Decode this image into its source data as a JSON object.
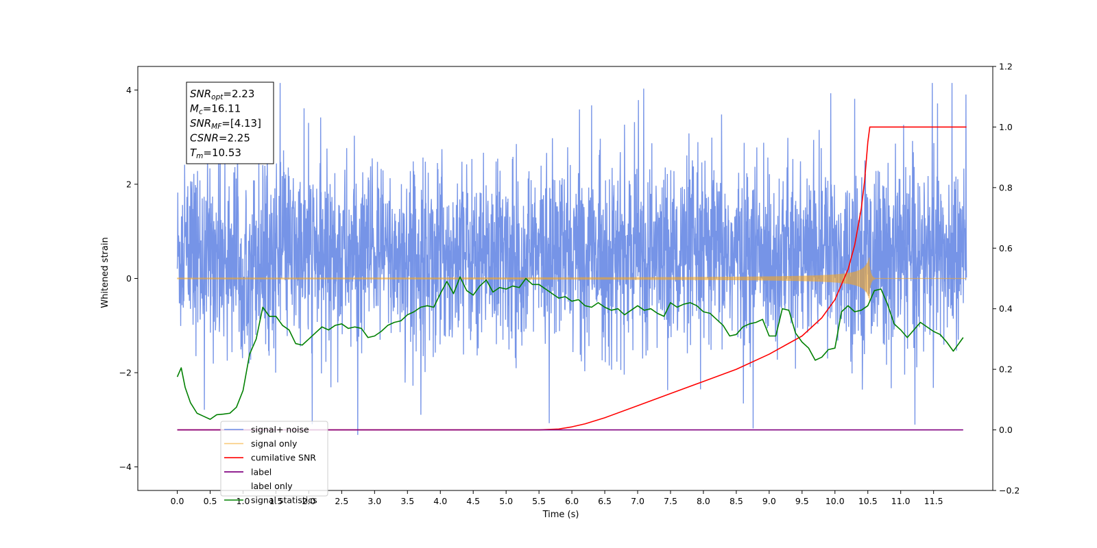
{
  "chart_data": {
    "type": "line",
    "title": "",
    "xlabel": "Time (s)",
    "ylabel": "Whitened strain",
    "ylabel_right": "",
    "xlim": [
      -0.6,
      12.4
    ],
    "ylim": [
      -4.5,
      4.5
    ],
    "ylim_right": [
      -0.2,
      1.2
    ],
    "x_ticks": [
      "0.0",
      "0.5",
      "1.0",
      "1.5",
      "2.0",
      "2.5",
      "3.0",
      "3.5",
      "4.0",
      "4.5",
      "5.0",
      "5.5",
      "6.0",
      "6.5",
      "7.0",
      "7.5",
      "8.0",
      "8.5",
      "9.0",
      "9.5",
      "10.0",
      "10.5",
      "11.0",
      "11.5"
    ],
    "y_ticks_left": [
      "−4",
      "−2",
      "0",
      "2",
      "4"
    ],
    "y_ticks_right": [
      "−0.2",
      "0.0",
      "0.2",
      "0.4",
      "0.6",
      "0.8",
      "1.0",
      "1.2"
    ],
    "grid": false,
    "legend_position": "lower-left",
    "annotation": {
      "lines": [
        {
          "sym": "SNR",
          "sub": "opt",
          "value": "=2.23"
        },
        {
          "sym": "M",
          "sub": "c",
          "value": "=16.11"
        },
        {
          "sym": "SNR",
          "sub": "MF",
          "value": "=[4.13]"
        },
        {
          "sym": "CSNR",
          "sub": "",
          "value": "=2.25"
        },
        {
          "sym": "T",
          "sub": "m",
          "value": "=10.53"
        }
      ]
    },
    "series": [
      {
        "name": "signal+ noise",
        "axis": "left",
        "color": "#6f8ee6",
        "kind": "noise",
        "x_range": [
          0.0,
          12.0
        ],
        "mean": 0.5,
        "std": 0.95
      },
      {
        "name": "signal only",
        "axis": "left",
        "color": "#f5a623",
        "kind": "chirp",
        "x_range": [
          0.0,
          12.0
        ],
        "merger_time": 10.53,
        "peak_amplitude": 0.5
      },
      {
        "name": "cumilative SNR",
        "axis": "right",
        "color": "#ff0000",
        "x": [
          0.0,
          5.5,
          5.8,
          6.0,
          6.2,
          6.5,
          7.0,
          7.5,
          8.0,
          8.5,
          9.0,
          9.5,
          9.8,
          10.0,
          10.2,
          10.3,
          10.4,
          10.45,
          10.5,
          10.53,
          11.0,
          12.0
        ],
        "values": [
          0.0,
          0.0,
          0.003,
          0.01,
          0.02,
          0.04,
          0.08,
          0.12,
          0.16,
          0.2,
          0.25,
          0.31,
          0.37,
          0.43,
          0.53,
          0.61,
          0.73,
          0.82,
          0.95,
          1.0,
          1.0,
          1.0
        ]
      },
      {
        "name": "label",
        "axis": "right",
        "color": "#800080",
        "x": [
          0.0,
          11.95
        ],
        "values": [
          0.0,
          0.0
        ]
      },
      {
        "name": "label only",
        "axis": "right",
        "color": "#ffffff",
        "hidden": true,
        "x": [],
        "values": []
      },
      {
        "name": "signal statistics",
        "axis": "right",
        "color": "#008000",
        "x": [
          0.0,
          0.06,
          0.12,
          0.2,
          0.3,
          0.4,
          0.5,
          0.6,
          0.7,
          0.8,
          0.9,
          1.0,
          1.1,
          1.2,
          1.3,
          1.4,
          1.5,
          1.6,
          1.7,
          1.8,
          1.9,
          2.0,
          2.1,
          2.2,
          2.3,
          2.4,
          2.5,
          2.6,
          2.7,
          2.8,
          2.9,
          3.0,
          3.1,
          3.2,
          3.3,
          3.4,
          3.5,
          3.6,
          3.7,
          3.8,
          3.9,
          4.0,
          4.1,
          4.2,
          4.3,
          4.4,
          4.5,
          4.6,
          4.7,
          4.8,
          4.9,
          5.0,
          5.1,
          5.2,
          5.3,
          5.4,
          5.5,
          5.6,
          5.7,
          5.8,
          5.9,
          6.0,
          6.1,
          6.2,
          6.3,
          6.4,
          6.5,
          6.6,
          6.7,
          6.8,
          6.9,
          7.0,
          7.1,
          7.2,
          7.3,
          7.4,
          7.5,
          7.6,
          7.7,
          7.8,
          7.9,
          8.0,
          8.1,
          8.2,
          8.3,
          8.4,
          8.5,
          8.6,
          8.7,
          8.8,
          8.9,
          9.0,
          9.1,
          9.2,
          9.3,
          9.4,
          9.5,
          9.6,
          9.7,
          9.8,
          9.9,
          10.0,
          10.1,
          10.2,
          10.3,
          10.4,
          10.5,
          10.6,
          10.7,
          10.8,
          10.9,
          11.0,
          11.1,
          11.2,
          11.3,
          11.4,
          11.5,
          11.6,
          11.7,
          11.8,
          11.9,
          11.95
        ],
        "values": [
          0.175,
          0.205,
          0.14,
          0.09,
          0.055,
          0.045,
          0.035,
          0.05,
          0.052,
          0.055,
          0.075,
          0.13,
          0.25,
          0.3,
          0.405,
          0.375,
          0.375,
          0.345,
          0.33,
          0.285,
          0.28,
          0.3,
          0.32,
          0.34,
          0.33,
          0.345,
          0.35,
          0.335,
          0.34,
          0.335,
          0.305,
          0.31,
          0.325,
          0.345,
          0.355,
          0.36,
          0.38,
          0.39,
          0.405,
          0.41,
          0.405,
          0.45,
          0.49,
          0.45,
          0.505,
          0.46,
          0.445,
          0.475,
          0.495,
          0.455,
          0.47,
          0.465,
          0.475,
          0.47,
          0.5,
          0.48,
          0.48,
          0.465,
          0.45,
          0.435,
          0.44,
          0.425,
          0.43,
          0.41,
          0.405,
          0.42,
          0.405,
          0.395,
          0.4,
          0.38,
          0.395,
          0.41,
          0.395,
          0.4,
          0.385,
          0.375,
          0.42,
          0.405,
          0.415,
          0.42,
          0.41,
          0.39,
          0.385,
          0.365,
          0.345,
          0.31,
          0.315,
          0.34,
          0.35,
          0.355,
          0.365,
          0.31,
          0.31,
          0.4,
          0.395,
          0.32,
          0.29,
          0.27,
          0.23,
          0.24,
          0.265,
          0.27,
          0.39,
          0.41,
          0.39,
          0.395,
          0.41,
          0.46,
          0.465,
          0.415,
          0.35,
          0.33,
          0.305,
          0.33,
          0.355,
          0.34,
          0.325,
          0.315,
          0.29,
          0.26,
          0.29,
          0.305
        ]
      }
    ]
  }
}
